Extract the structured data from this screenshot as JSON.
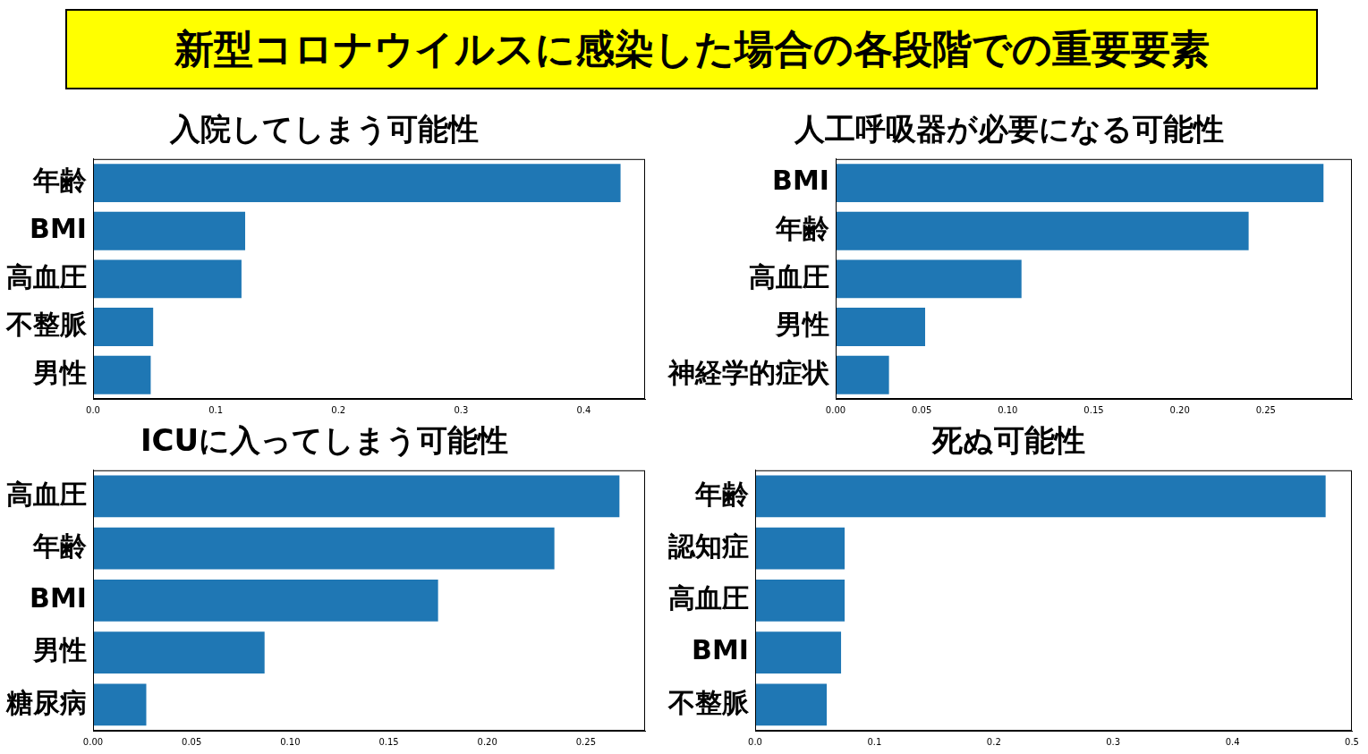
{
  "title": "新型コロナウイルスに感染した場合の各段階での重要要素",
  "chart_data": [
    {
      "type": "bar",
      "title": "入院してしまう可能性",
      "orientation": "horizontal",
      "categories": [
        "年齢",
        "BMI",
        "高血圧",
        "不整脈",
        "男性"
      ],
      "values": [
        0.43,
        0.124,
        0.121,
        0.049,
        0.047
      ],
      "color": "#1f77b4",
      "xlim": [
        0,
        0.45
      ],
      "xticks": [
        {
          "value": 0,
          "label": "0.0"
        },
        0.1,
        0.2,
        0.3,
        0.4
      ],
      "grid": false
    },
    {
      "type": "bar",
      "title": "人工呼吸器が必要になる可能性",
      "orientation": "horizontal",
      "categories": [
        "BMI",
        "年齢",
        "高血圧",
        "男性",
        "神経学的症状"
      ],
      "values": [
        0.2835,
        0.24,
        0.108,
        0.052,
        0.031
      ],
      "color": "#1f77b4",
      "xlim": [
        0,
        0.3
      ],
      "xticks": [
        {
          "value": 0,
          "label": "0.00"
        },
        0.05,
        {
          "value": 0.1,
          "label": "0.10"
        },
        0.15,
        {
          "value": 0.2,
          "label": "0.20"
        },
        0.25
      ],
      "grid": false
    },
    {
      "type": "bar",
      "title": "ICUに入ってしまう可能性",
      "orientation": "horizontal",
      "categories": [
        "高血圧",
        "年齢",
        "BMI",
        "男性",
        "糖尿病"
      ],
      "values": [
        0.267,
        0.234,
        0.175,
        0.087,
        0.027
      ],
      "color": "#1f77b4",
      "xlim": [
        0,
        0.28
      ],
      "xticks": [
        {
          "value": 0,
          "label": "0.00"
        },
        0.05,
        {
          "value": 0.1,
          "label": "0.10"
        },
        0.15,
        {
          "value": 0.2,
          "label": "0.20"
        },
        0.25
      ],
      "grid": false
    },
    {
      "type": "bar",
      "title": "死ぬ可能性",
      "orientation": "horizontal",
      "categories": [
        "年齢",
        "認知症",
        "高血圧",
        "BMI",
        "不整脈"
      ],
      "values": [
        0.478,
        0.075,
        0.075,
        0.072,
        0.06
      ],
      "color": "#1f77b4",
      "xlim": [
        0,
        0.5
      ],
      "xticks": [
        {
          "value": 0,
          "label": "0.0"
        },
        0.1,
        0.2,
        0.3,
        0.4,
        0.5
      ],
      "grid": false
    }
  ]
}
